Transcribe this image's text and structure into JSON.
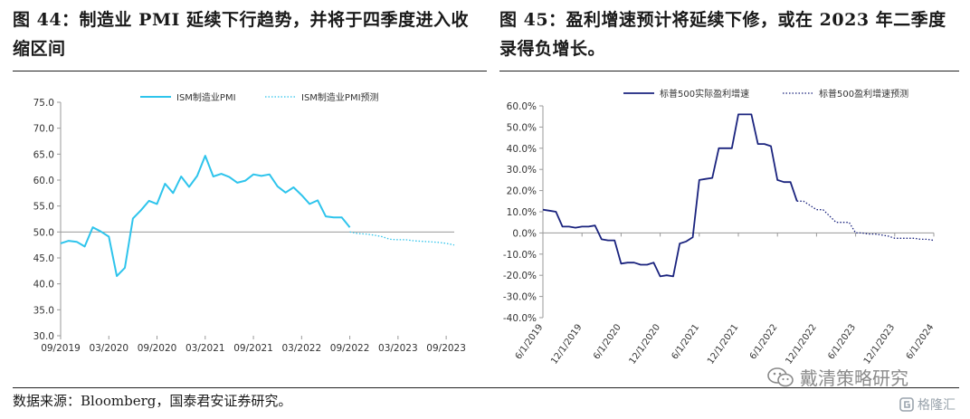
{
  "figures": {
    "left_title": "图 44：制造业 PMI 延续下行趋势，并将于四季度进入收缩区间",
    "right_title": "图 45：盈利增速预计将延续下修，或在 2023 年二季度录得负增长。"
  },
  "source": "数据来源：Bloomberg，国泰君安证券研究。",
  "watermark": "戴清策略研究",
  "brand": "格隆汇",
  "colors": {
    "pmi": "#2ec4ec",
    "earnings": "#1a237e",
    "axis": "#999999",
    "text": "#333333"
  },
  "chart_data": [
    {
      "type": "line",
      "title": "",
      "xlabel": "",
      "ylabel": "",
      "ylim": [
        30,
        75
      ],
      "yticks": [
        30,
        35,
        40,
        45,
        50,
        55,
        60,
        65,
        70,
        75
      ],
      "ytick_labels": [
        "30.0",
        "35.0",
        "40.0",
        "45.0",
        "50.0",
        "55.0",
        "60.0",
        "65.0",
        "70.0",
        "75.0"
      ],
      "x_range": [
        "2019-09",
        "2023-10"
      ],
      "xticks": [
        "2019-09",
        "2020-03",
        "2020-09",
        "2021-03",
        "2021-09",
        "2022-03",
        "2022-09",
        "2023-03",
        "2023-09"
      ],
      "xtick_labels": [
        "09/2019",
        "03/2020",
        "09/2020",
        "03/2021",
        "09/2021",
        "03/2022",
        "09/2022",
        "03/2023",
        "09/2023"
      ],
      "reference_line": 50,
      "legend_position": "top",
      "series": [
        {
          "name": "ISM制造业PMI",
          "style": "solid",
          "color": "#2ec4ec",
          "x": [
            "2019-09",
            "2019-10",
            "2019-11",
            "2019-12",
            "2020-01",
            "2020-02",
            "2020-03",
            "2020-04",
            "2020-05",
            "2020-06",
            "2020-07",
            "2020-08",
            "2020-09",
            "2020-10",
            "2020-11",
            "2020-12",
            "2021-01",
            "2021-02",
            "2021-03",
            "2021-04",
            "2021-05",
            "2021-06",
            "2021-07",
            "2021-08",
            "2021-09",
            "2021-10",
            "2021-11",
            "2021-12",
            "2022-01",
            "2022-02",
            "2022-03",
            "2022-04",
            "2022-05",
            "2022-06",
            "2022-07",
            "2022-08",
            "2022-09"
          ],
          "y": [
            47.8,
            48.3,
            48.1,
            47.2,
            50.9,
            50.1,
            49.1,
            41.5,
            43.1,
            52.6,
            54.2,
            56.0,
            55.4,
            59.3,
            57.5,
            60.7,
            58.7,
            60.8,
            64.7,
            60.7,
            61.2,
            60.6,
            59.5,
            59.9,
            61.1,
            60.8,
            61.1,
            58.8,
            57.6,
            58.6,
            57.1,
            55.4,
            56.1,
            53.0,
            52.8,
            52.8,
            50.9
          ]
        },
        {
          "name": "ISM制造业PMI预测",
          "style": "dotted",
          "color": "#2ec4ec",
          "x": [
            "2022-09",
            "2022-10",
            "2022-11",
            "2022-12",
            "2023-01",
            "2023-02",
            "2023-03",
            "2023-04",
            "2023-05",
            "2023-06",
            "2023-07",
            "2023-08",
            "2023-09",
            "2023-10"
          ],
          "y": [
            50.0,
            49.7,
            49.6,
            49.4,
            49.1,
            48.6,
            48.5,
            48.5,
            48.3,
            48.2,
            48.1,
            48.0,
            47.8,
            47.5
          ]
        }
      ]
    },
    {
      "type": "line",
      "title": "",
      "xlabel": "",
      "ylabel": "",
      "ylim": [
        -40,
        60
      ],
      "yticks": [
        -40,
        -30,
        -20,
        -10,
        0,
        10,
        20,
        30,
        40,
        50,
        60
      ],
      "ytick_labels": [
        "-40.0%",
        "-30.0%",
        "-20.0%",
        "-10.0%",
        "0.0%",
        "10.0%",
        "20.0%",
        "30.0%",
        "40.0%",
        "50.0%",
        "60.0%"
      ],
      "x_range": [
        "2019-06",
        "2024-06"
      ],
      "xticks": [
        "2019-06",
        "2019-12",
        "2020-06",
        "2020-12",
        "2021-06",
        "2021-12",
        "2022-06",
        "2022-12",
        "2023-06",
        "2023-12",
        "2024-06"
      ],
      "xtick_labels": [
        "6/1/2019",
        "12/1/2019",
        "6/1/2020",
        "12/1/2020",
        "6/1/2021",
        "12/1/2021",
        "6/1/2022",
        "12/1/2022",
        "6/1/2023",
        "12/1/2023",
        "6/1/2024"
      ],
      "legend_position": "top",
      "series": [
        {
          "name": "标普500实际盈利增速",
          "style": "solid",
          "color": "#1a237e",
          "x": [
            "2019-06",
            "2019-07",
            "2019-08",
            "2019-09",
            "2019-10",
            "2019-11",
            "2019-12",
            "2020-01",
            "2020-02",
            "2020-03",
            "2020-04",
            "2020-05",
            "2020-06",
            "2020-07",
            "2020-08",
            "2020-09",
            "2020-10",
            "2020-11",
            "2020-12",
            "2021-01",
            "2021-02",
            "2021-03",
            "2021-04",
            "2021-05",
            "2021-06",
            "2021-07",
            "2021-08",
            "2021-09",
            "2021-10",
            "2021-11",
            "2021-12",
            "2022-01",
            "2022-02",
            "2022-03",
            "2022-04",
            "2022-05",
            "2022-06",
            "2022-07",
            "2022-08",
            "2022-09"
          ],
          "y": [
            11,
            10.5,
            10,
            3,
            3,
            2.5,
            3,
            3,
            3.5,
            -3,
            -3.5,
            -3.5,
            -14.5,
            -14,
            -14,
            -15,
            -15,
            -14,
            -20.5,
            -20,
            -20.5,
            -5,
            -4,
            -2,
            25,
            25.5,
            26,
            40,
            40,
            40,
            56,
            56,
            56,
            42,
            42,
            41,
            25,
            24,
            24,
            15
          ]
        },
        {
          "name": "标普500盈利增速预测",
          "style": "dotted",
          "color": "#1a237e",
          "x": [
            "2022-09",
            "2022-10",
            "2022-11",
            "2022-12",
            "2023-01",
            "2023-02",
            "2023-03",
            "2023-04",
            "2023-05",
            "2023-06",
            "2023-07",
            "2023-08",
            "2023-09",
            "2023-10",
            "2023-11",
            "2023-12",
            "2024-01",
            "2024-02",
            "2024-03",
            "2024-04",
            "2024-05",
            "2024-06"
          ],
          "y": [
            15,
            15,
            13,
            11,
            11,
            8,
            5,
            5,
            5,
            0,
            0,
            -0.5,
            -0.5,
            -1,
            -1.5,
            -2.5,
            -2.5,
            -2.5,
            -2.5,
            -3,
            -3,
            -3.5
          ]
        }
      ]
    }
  ]
}
